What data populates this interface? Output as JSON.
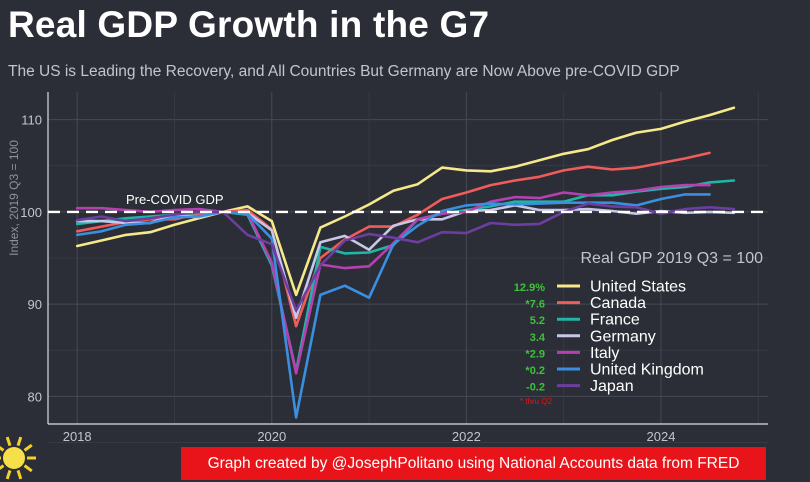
{
  "title": "Real GDP Growth in the G7",
  "subtitle": "The US is Leading the Recovery, and All Countries But Germany are Now Above pre-COVID GDP",
  "credit": "Graph created by @JosephPolitano using National Accounts data from FRED",
  "chart_data": {
    "type": "line",
    "ylabel": "Index, 2019 Q3 = 100",
    "xlim": [
      2017.7,
      2025.1
    ],
    "ylim": [
      77,
      113
    ],
    "x_ticks": [
      "2018",
      "2020",
      "2022",
      "2024"
    ],
    "y_ticks": [
      "80",
      "90",
      "100",
      "110"
    ],
    "grid": true,
    "annotations": {
      "reference_line_label": "Pre-COVID GDP",
      "reference_value": 100,
      "legend_title": "Real GDP 2019 Q3 = 100",
      "footnote": "* thru Q2"
    },
    "legend_placement": "bottom-right",
    "x": [
      2018.0,
      2018.25,
      2018.5,
      2018.75,
      2019.0,
      2019.25,
      2019.5,
      2019.75,
      2020.0,
      2020.25,
      2020.5,
      2020.75,
      2021.0,
      2021.25,
      2021.5,
      2021.75,
      2022.0,
      2022.25,
      2022.5,
      2022.75,
      2023.0,
      2023.25,
      2023.5,
      2023.75,
      2024.0,
      2024.25,
      2024.5,
      2024.75
    ],
    "series": [
      {
        "name": "United States",
        "change": "12.9%",
        "color": "#f5e98a",
        "values": [
          96.3,
          96.9,
          97.5,
          97.8,
          98.6,
          99.3,
          100.0,
          100.6,
          99.0,
          91.0,
          98.3,
          99.5,
          100.8,
          102.3,
          103.0,
          104.8,
          104.5,
          104.4,
          104.9,
          105.6,
          106.3,
          106.8,
          107.8,
          108.6,
          109.0,
          109.8,
          110.5,
          111.3
        ]
      },
      {
        "name": "Canada",
        "change": "*7.6",
        "color": "#f05c5c",
        "values": [
          97.9,
          98.4,
          98.9,
          99.2,
          99.2,
          99.8,
          100.0,
          100.2,
          98.1,
          87.6,
          95.0,
          97.0,
          98.4,
          98.4,
          99.7,
          101.4,
          102.1,
          102.9,
          103.4,
          103.8,
          104.5,
          104.9,
          104.6,
          104.8,
          105.3,
          105.8,
          106.4,
          null
        ]
      },
      {
        "name": "France",
        "change": "5.2",
        "color": "#1fb5a8",
        "values": [
          98.7,
          99.0,
          99.3,
          99.5,
          99.7,
          99.9,
          100.0,
          99.7,
          94.2,
          82.7,
          96.2,
          95.5,
          95.6,
          96.4,
          99.2,
          99.8,
          100.2,
          100.6,
          101.1,
          101.1,
          101.1,
          101.8,
          101.8,
          102.2,
          102.5,
          102.7,
          103.2,
          103.4
        ]
      },
      {
        "name": "Germany",
        "change": "3.4",
        "color": "#c7c8e8",
        "values": [
          99.0,
          99.0,
          98.8,
          98.8,
          99.7,
          99.4,
          100.0,
          99.9,
          98.0,
          88.5,
          96.7,
          97.4,
          95.9,
          98.5,
          99.2,
          99.2,
          100.1,
          100.2,
          100.7,
          100.2,
          100.2,
          100.3,
          100.1,
          99.8,
          100.1,
          99.9,
          100.0,
          99.9
        ]
      },
      {
        "name": "Italy",
        "change": "*2.9",
        "color": "#b640b0",
        "values": [
          100.4,
          100.4,
          100.2,
          100.0,
          100.2,
          100.3,
          100.0,
          99.9,
          94.5,
          82.5,
          94.3,
          93.9,
          94.1,
          96.6,
          99.2,
          99.8,
          100.0,
          101.1,
          101.6,
          101.5,
          102.1,
          101.8,
          102.1,
          102.3,
          102.7,
          102.9,
          102.9,
          null
        ]
      },
      {
        "name": "United Kingdom",
        "change": "*0.2",
        "color": "#3a8fe0",
        "values": [
          97.5,
          97.9,
          98.6,
          98.8,
          99.4,
          99.5,
          100.0,
          99.8,
          97.1,
          77.7,
          91.0,
          92.0,
          90.7,
          96.5,
          98.5,
          100.1,
          100.7,
          100.9,
          100.8,
          100.9,
          101.0,
          101.0,
          101.0,
          100.7,
          101.4,
          101.9,
          101.9,
          null
        ]
      },
      {
        "name": "Japan",
        "change": "-0.2",
        "color": "#6c3ea0",
        "values": [
          99.1,
          99.5,
          99.0,
          99.3,
          99.7,
          100.0,
          100.0,
          97.5,
          96.5,
          89.3,
          94.2,
          96.9,
          97.6,
          97.2,
          96.7,
          97.8,
          97.7,
          98.8,
          98.6,
          98.7,
          100.0,
          100.9,
          100.6,
          100.5,
          99.8,
          100.3,
          100.5,
          100.3
        ]
      }
    ]
  }
}
